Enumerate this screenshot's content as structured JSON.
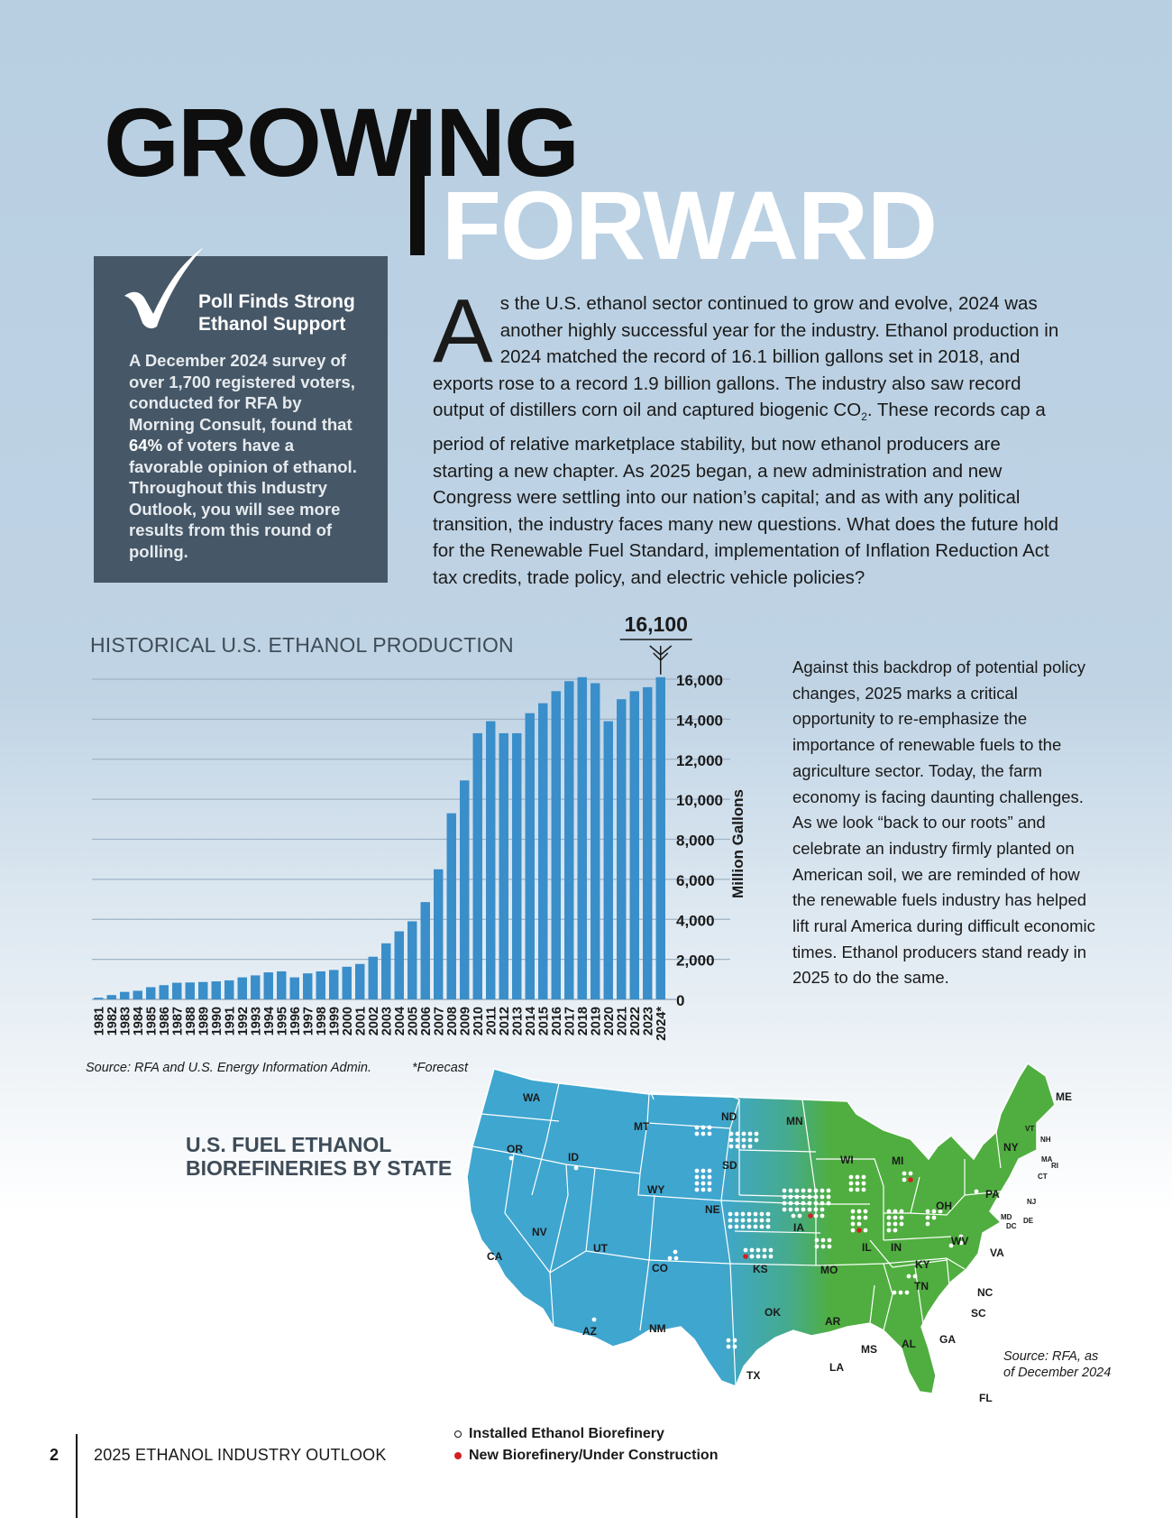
{
  "title": {
    "line1": "GROWING",
    "line2": "FORWARD"
  },
  "poll": {
    "heading": "Poll Finds Strong Ethanol Support",
    "body_before": "A December 2024 survey of over 1,700 registered voters, conducted for RFA by Morning Consult, found that ",
    "highlight": "64%",
    "body_after": " of voters have a favorable opinion of ethanol. Throughout this Industry Outlook, you will see more results from this round of polling."
  },
  "intro": {
    "dropcap": "A",
    "text_before_sub": "s the U.S. ethanol sector continued to grow and evolve, 2024 was another highly successful year for the industry. Ethanol production in 2024 matched the record of 16.1 billion gallons set in 2018, and exports rose to a record 1.9 billion gallons. The industry also saw record output of distillers corn oil and captured biogenic CO",
    "sub": "2",
    "text_after_sub": ". These records cap a period of relative marketplace stability, but now ethanol producers are starting a new chapter. As 2025 began, a new administration and new Congress were settling into our nation’s capital; and as with any political transition, the industry faces many new questions. What does the future hold for the Renewable Fuel Standard, implementation of Inflation Reduction Act tax credits, trade policy, and electric vehicle policies?"
  },
  "side_text": "Against this backdrop of potential policy changes, 2025 marks a critical opportunity to re-emphasize the importance of renewable fuels to the agriculture sector. Today, the farm economy is facing daunting challenges. As we look “back to our roots” and celebrate an industry firmly planted on American soil, we are reminded of how the renewable fuels industry has helped lift rural America during difficult economic times. Ethanol producers stand ready in 2025 to do the same.",
  "chart_data": {
    "type": "bar",
    "title": "HISTORICAL U.S. ETHANOL PRODUCTION",
    "ylabel": "Million Gallons",
    "xlabel": "",
    "ylim": [
      0,
      16000
    ],
    "yticks": [
      "0",
      "2,000",
      "4,000",
      "6,000",
      "8,000",
      "10,000",
      "12,000",
      "14,000",
      "16,000"
    ],
    "ytick_values": [
      0,
      2000,
      4000,
      6000,
      8000,
      10000,
      12000,
      14000,
      16000
    ],
    "callout": "16,100",
    "categories": [
      "1981",
      "1982",
      "1983",
      "1984",
      "1985",
      "1986",
      "1987",
      "1988",
      "1989",
      "1990",
      "1991",
      "1992",
      "1993",
      "1994",
      "1995",
      "1996",
      "1997",
      "1998",
      "1999",
      "2000",
      "2001",
      "2002",
      "2003",
      "2004",
      "2005",
      "2006",
      "2007",
      "2008",
      "2009",
      "2010",
      "2011",
      "2012",
      "2013",
      "2014",
      "2015",
      "2016",
      "2017",
      "2018",
      "2019",
      "2020",
      "2021",
      "2022",
      "2023",
      "2024*"
    ],
    "values": [
      83,
      215,
      375,
      430,
      610,
      710,
      830,
      845,
      870,
      900,
      950,
      1100,
      1200,
      1350,
      1400,
      1100,
      1300,
      1400,
      1470,
      1630,
      1770,
      2130,
      2800,
      3400,
      3900,
      4860,
      6500,
      9300,
      10940,
      13300,
      13900,
      13300,
      13300,
      14300,
      14800,
      15400,
      15900,
      16100,
      15800,
      13900,
      15000,
      15400,
      15600,
      16100
    ],
    "grid": true,
    "source": "Source: RFA and U.S. Energy Information Admin.",
    "forecast_note": "*Forecast"
  },
  "map": {
    "title_line1": "U.S. FUEL ETHANOL",
    "title_line2": "BIOREFINERIES BY STATE",
    "source_line1": "Source: RFA, as",
    "source_line2": "of December 2024",
    "legend": {
      "installed": "Installed Ethanol Biorefinery",
      "new": "New Biorefinery/Under Construction"
    },
    "colors": {
      "west": "#3fa6cf",
      "east": "#4fae3f",
      "installed": "#ffffff",
      "new": "#d32020"
    },
    "states": [
      "WA",
      "OR",
      "CA",
      "ID",
      "NV",
      "MT",
      "WY",
      "UT",
      "AZ",
      "CO",
      "NM",
      "ND",
      "SD",
      "NE",
      "KS",
      "OK",
      "TX",
      "MN",
      "IA",
      "MO",
      "AR",
      "LA",
      "WI",
      "IL",
      "MI",
      "IN",
      "OH",
      "KY",
      "TN",
      "MS",
      "AL",
      "GA",
      "FL",
      "SC",
      "NC",
      "VA",
      "WV",
      "PA",
      "NY",
      "ME",
      "VT",
      "NH",
      "MA",
      "RI",
      "CT",
      "NJ",
      "DE",
      "MD",
      "DC"
    ]
  },
  "footer": {
    "page_number": "2",
    "publication": "2025 ETHANOL INDUSTRY OUTLOOK"
  }
}
